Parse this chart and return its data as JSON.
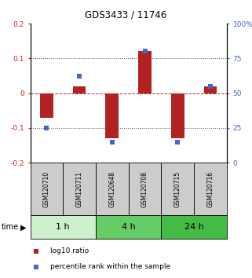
{
  "title": "GDS3433 / 11746",
  "samples": [
    "GSM120710",
    "GSM120711",
    "GSM120648",
    "GSM120708",
    "GSM120715",
    "GSM120716"
  ],
  "log10_ratio": [
    -0.07,
    0.02,
    -0.13,
    0.12,
    -0.13,
    0.02
  ],
  "percentile_rank": [
    25,
    62,
    15,
    80,
    15,
    55
  ],
  "ylim_left": [
    -0.2,
    0.2
  ],
  "ylim_right": [
    0,
    100
  ],
  "yticks_left": [
    -0.2,
    -0.1,
    0.0,
    0.1,
    0.2
  ],
  "yticks_right": [
    0,
    25,
    50,
    75,
    100
  ],
  "ytick_labels_left": [
    "-0.2",
    "-0.1",
    "0",
    "0.1",
    "0.2"
  ],
  "ytick_labels_right": [
    "0",
    "25",
    "50",
    "75",
    "100%"
  ],
  "bar_color": "#b22222",
  "dot_color": "#4466cc",
  "time_groups": [
    {
      "label": "1 h",
      "indices": [
        0,
        1
      ],
      "color": "#ccf0cc"
    },
    {
      "label": "4 h",
      "indices": [
        2,
        3
      ],
      "color": "#66cc66"
    },
    {
      "label": "24 h",
      "indices": [
        4,
        5
      ],
      "color": "#44bb44"
    }
  ],
  "time_label": "time",
  "legend_bar_label": "log10 ratio",
  "legend_dot_label": "percentile rank within the sample",
  "background_color": "#ffffff",
  "plot_bg_color": "#ffffff",
  "dotted_line_color": "#555555",
  "zero_line_color": "#cc2222",
  "sample_box_color": "#cccccc"
}
